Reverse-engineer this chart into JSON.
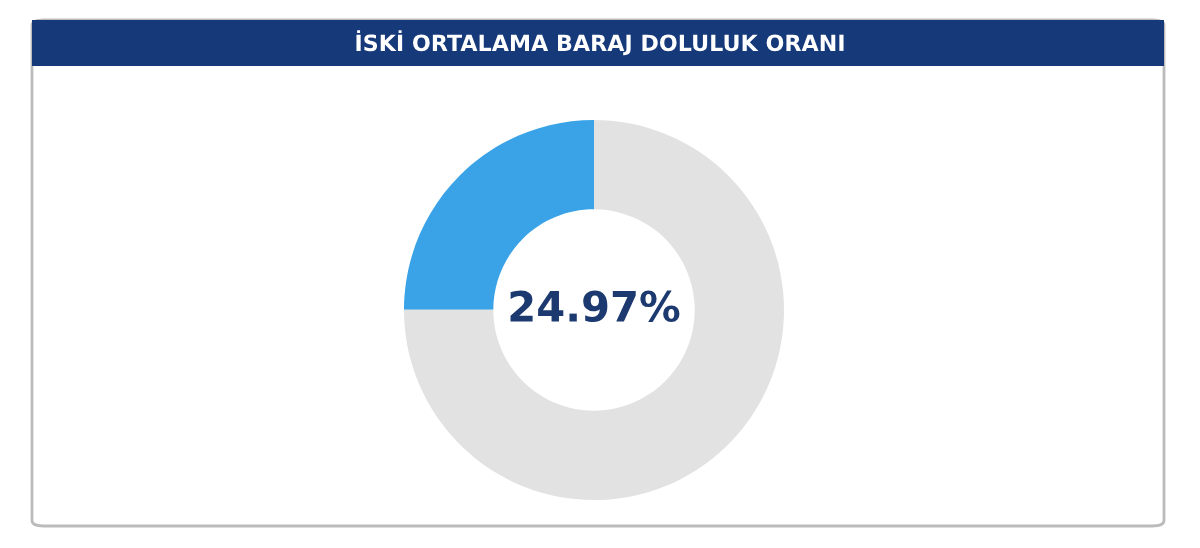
{
  "chart_data": {
    "type": "donut",
    "title": "İSKİ ORTALAMA BARAJ DOLULUK ORANI",
    "categories": [
      null,
      null
    ],
    "values": [
      24.97,
      75.03
    ],
    "colors": [
      "#3aa3e8",
      "#e2e2e2"
    ],
    "annotations": [
      "24.97%"
    ]
  }
}
